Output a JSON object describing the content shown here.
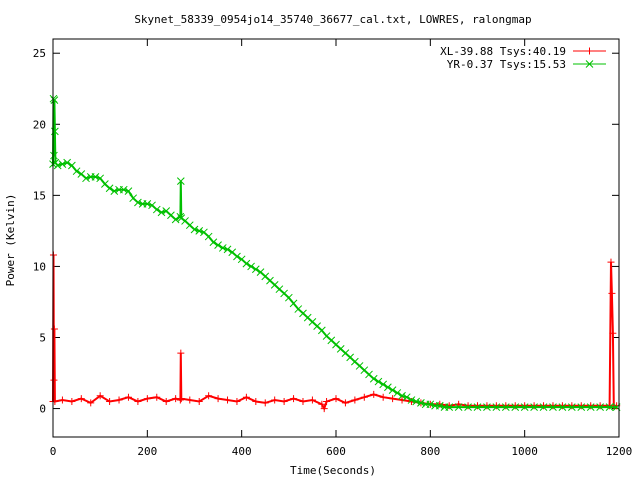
{
  "chart_data": {
    "type": "line",
    "title": "Skynet_58339_0954jo14_35740_36677_cal.txt, LOWRES, ralongmap",
    "xlabel": "Time(Seconds)",
    "ylabel": "Power (Kelvin)",
    "xlim": [
      0,
      1200
    ],
    "ylim": [
      -2,
      26
    ],
    "xticks": [
      0,
      200,
      400,
      600,
      800,
      1000,
      1200
    ],
    "yticks": [
      0,
      5,
      10,
      15,
      20,
      25
    ],
    "legend_position": "top-right",
    "grid": false,
    "series": [
      {
        "name": "XL-39.88 Tsys:40.19",
        "color": "#ff0000",
        "marker": "plus",
        "points": [
          [
            0,
            0.5
          ],
          [
            1,
            10.8
          ],
          [
            2,
            2.0
          ],
          [
            3,
            5.6
          ],
          [
            4,
            0.5
          ],
          [
            20,
            0.6
          ],
          [
            40,
            0.5
          ],
          [
            60,
            0.7
          ],
          [
            80,
            0.4
          ],
          [
            100,
            0.9
          ],
          [
            120,
            0.5
          ],
          [
            140,
            0.6
          ],
          [
            160,
            0.8
          ],
          [
            180,
            0.5
          ],
          [
            200,
            0.7
          ],
          [
            220,
            0.8
          ],
          [
            240,
            0.5
          ],
          [
            260,
            0.7
          ],
          [
            270,
            0.6
          ],
          [
            271,
            3.9
          ],
          [
            272,
            0.7
          ],
          [
            290,
            0.6
          ],
          [
            310,
            0.5
          ],
          [
            330,
            0.9
          ],
          [
            350,
            0.7
          ],
          [
            370,
            0.6
          ],
          [
            390,
            0.5
          ],
          [
            410,
            0.8
          ],
          [
            430,
            0.5
          ],
          [
            450,
            0.4
          ],
          [
            470,
            0.6
          ],
          [
            490,
            0.5
          ],
          [
            510,
            0.7
          ],
          [
            530,
            0.5
          ],
          [
            550,
            0.6
          ],
          [
            570,
            0.3
          ],
          [
            575,
            0.0
          ],
          [
            580,
            0.5
          ],
          [
            600,
            0.7
          ],
          [
            620,
            0.4
          ],
          [
            640,
            0.6
          ],
          [
            660,
            0.8
          ],
          [
            680,
            1.0
          ],
          [
            700,
            0.8
          ],
          [
            720,
            0.7
          ],
          [
            740,
            0.6
          ],
          [
            760,
            0.5
          ],
          [
            780,
            0.4
          ],
          [
            800,
            0.3
          ],
          [
            820,
            0.3
          ],
          [
            840,
            0.2
          ],
          [
            860,
            0.3
          ],
          [
            880,
            0.2
          ],
          [
            900,
            0.2
          ],
          [
            920,
            0.2
          ],
          [
            940,
            0.2
          ],
          [
            960,
            0.2
          ],
          [
            980,
            0.2
          ],
          [
            1000,
            0.2
          ],
          [
            1020,
            0.2
          ],
          [
            1040,
            0.2
          ],
          [
            1060,
            0.2
          ],
          [
            1080,
            0.2
          ],
          [
            1100,
            0.2
          ],
          [
            1120,
            0.2
          ],
          [
            1140,
            0.2
          ],
          [
            1160,
            0.2
          ],
          [
            1180,
            0.2
          ],
          [
            1183,
            10.3
          ],
          [
            1185,
            8.1
          ],
          [
            1187,
            5.3
          ],
          [
            1189,
            0.2
          ],
          [
            1195,
            0.2
          ]
        ]
      },
      {
        "name": "YR-0.37 Tsys:15.53",
        "color": "#00c000",
        "marker": "cross",
        "points": [
          [
            0,
            17.2
          ],
          [
            1,
            21.8
          ],
          [
            2,
            17.8
          ],
          [
            3,
            21.7
          ],
          [
            4,
            19.5
          ],
          [
            5,
            17.3
          ],
          [
            10,
            17.1
          ],
          [
            20,
            17.2
          ],
          [
            30,
            17.3
          ],
          [
            40,
            17.1
          ],
          [
            50,
            16.7
          ],
          [
            60,
            16.5
          ],
          [
            70,
            16.2
          ],
          [
            80,
            16.3
          ],
          [
            90,
            16.3
          ],
          [
            100,
            16.2
          ],
          [
            110,
            15.8
          ],
          [
            120,
            15.5
          ],
          [
            130,
            15.3
          ],
          [
            140,
            15.4
          ],
          [
            150,
            15.4
          ],
          [
            160,
            15.3
          ],
          [
            170,
            14.8
          ],
          [
            180,
            14.5
          ],
          [
            190,
            14.4
          ],
          [
            200,
            14.4
          ],
          [
            210,
            14.3
          ],
          [
            220,
            14.0
          ],
          [
            230,
            13.8
          ],
          [
            240,
            13.9
          ],
          [
            250,
            13.6
          ],
          [
            260,
            13.3
          ],
          [
            270,
            13.5
          ],
          [
            271,
            16.0
          ],
          [
            272,
            13.4
          ],
          [
            280,
            13.2
          ],
          [
            290,
            12.9
          ],
          [
            300,
            12.6
          ],
          [
            310,
            12.5
          ],
          [
            320,
            12.4
          ],
          [
            330,
            12.1
          ],
          [
            340,
            11.7
          ],
          [
            350,
            11.5
          ],
          [
            360,
            11.3
          ],
          [
            370,
            11.2
          ],
          [
            380,
            11.0
          ],
          [
            390,
            10.7
          ],
          [
            400,
            10.5
          ],
          [
            410,
            10.2
          ],
          [
            420,
            10.0
          ],
          [
            430,
            9.8
          ],
          [
            440,
            9.6
          ],
          [
            450,
            9.3
          ],
          [
            460,
            9.0
          ],
          [
            470,
            8.7
          ],
          [
            480,
            8.4
          ],
          [
            490,
            8.1
          ],
          [
            500,
            7.8
          ],
          [
            510,
            7.4
          ],
          [
            520,
            7.0
          ],
          [
            530,
            6.7
          ],
          [
            540,
            6.4
          ],
          [
            550,
            6.1
          ],
          [
            560,
            5.8
          ],
          [
            570,
            5.5
          ],
          [
            580,
            5.1
          ],
          [
            590,
            4.8
          ],
          [
            600,
            4.5
          ],
          [
            610,
            4.2
          ],
          [
            620,
            3.9
          ],
          [
            630,
            3.6
          ],
          [
            640,
            3.3
          ],
          [
            650,
            3.0
          ],
          [
            660,
            2.7
          ],
          [
            670,
            2.4
          ],
          [
            680,
            2.1
          ],
          [
            690,
            1.9
          ],
          [
            700,
            1.7
          ],
          [
            710,
            1.5
          ],
          [
            720,
            1.3
          ],
          [
            730,
            1.1
          ],
          [
            740,
            0.9
          ],
          [
            750,
            0.8
          ],
          [
            760,
            0.6
          ],
          [
            770,
            0.5
          ],
          [
            780,
            0.4
          ],
          [
            790,
            0.3
          ],
          [
            800,
            0.3
          ],
          [
            810,
            0.2
          ],
          [
            820,
            0.2
          ],
          [
            830,
            0.1
          ],
          [
            840,
            0.1
          ],
          [
            860,
            0.1
          ],
          [
            880,
            0.1
          ],
          [
            900,
            0.1
          ],
          [
            920,
            0.1
          ],
          [
            940,
            0.1
          ],
          [
            960,
            0.1
          ],
          [
            980,
            0.1
          ],
          [
            1000,
            0.1
          ],
          [
            1020,
            0.1
          ],
          [
            1040,
            0.1
          ],
          [
            1060,
            0.1
          ],
          [
            1080,
            0.1
          ],
          [
            1100,
            0.1
          ],
          [
            1120,
            0.1
          ],
          [
            1140,
            0.1
          ],
          [
            1160,
            0.1
          ],
          [
            1180,
            0.1
          ],
          [
            1195,
            0.1
          ]
        ]
      }
    ]
  }
}
